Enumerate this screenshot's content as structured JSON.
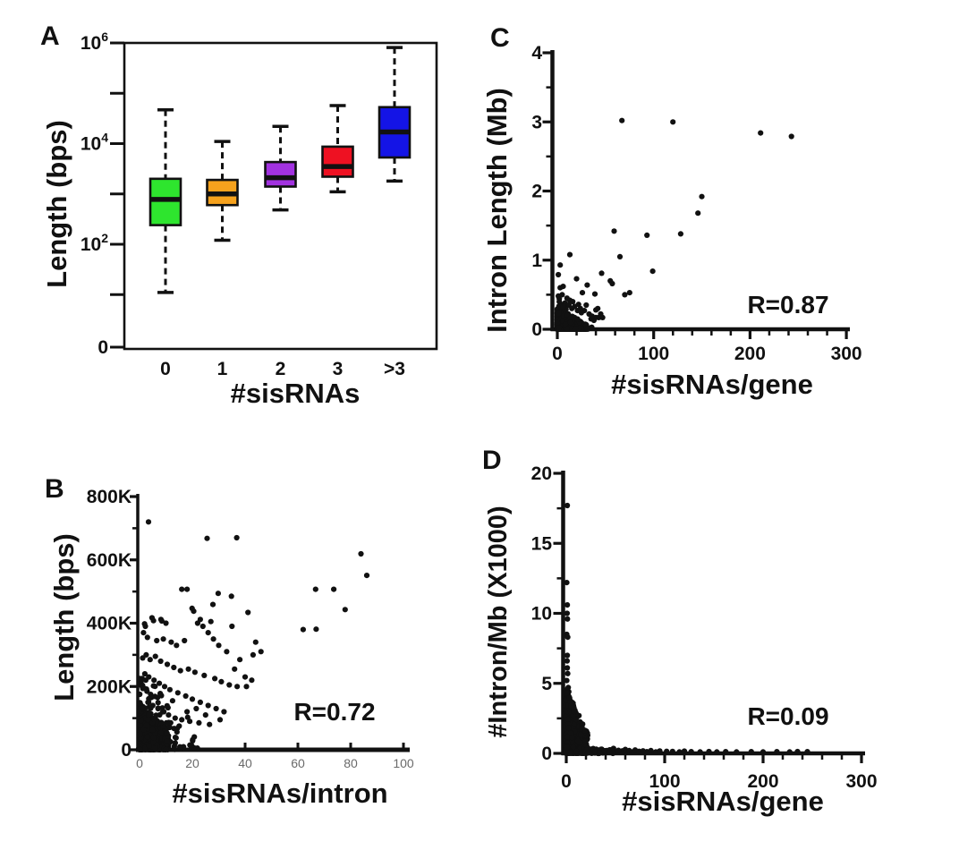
{
  "figure": {
    "background": "#ffffff",
    "description": "Four-panel figure: sisRNA counts versus intron/gene length metrics"
  },
  "chart_data": [
    {
      "panel": "A",
      "type": "box",
      "xlabel": "#sisRNAs",
      "ylabel": "Length (bps)",
      "categories": [
        "0",
        "1",
        "2",
        "3",
        ">3"
      ],
      "y_scale": "log",
      "y_major_ticks": [
        {
          "base": "10",
          "sup": "6",
          "value": 1000000
        },
        {
          "base": "10",
          "sup": "4",
          "value": 10000
        },
        {
          "base": "10",
          "sup": "2",
          "value": 100
        },
        {
          "base": "0",
          "sup": "",
          "value": 0
        }
      ],
      "y_minor_tick_values": [
        100000,
        1000,
        10
      ],
      "boxes": [
        {
          "category": "0",
          "color": "#2ee52e",
          "whisker_low": 11,
          "q1": 240,
          "median": 780,
          "q3": 2000,
          "whisker_high": 47000
        },
        {
          "category": "1",
          "color": "#f6a21d",
          "whisker_low": 120,
          "q1": 600,
          "median": 1000,
          "q3": 1900,
          "whisker_high": 11000
        },
        {
          "category": "2",
          "color": "#a232e0",
          "whisker_low": 480,
          "q1": 1400,
          "median": 2100,
          "q3": 4300,
          "whisker_high": 22000
        },
        {
          "category": "3",
          "color": "#ee1122",
          "whisker_low": 1100,
          "q1": 2200,
          "median": 3500,
          "q3": 8700,
          "whisker_high": 57000
        },
        {
          "category": ">3",
          "color": "#1414e6",
          "whisker_low": 1800,
          "q1": 5300,
          "median": 17000,
          "q3": 53000,
          "whisker_high": 810000
        }
      ]
    },
    {
      "panel": "B",
      "type": "scatter",
      "xlabel": "#sisRNAs/intron",
      "ylabel": "Length (bps)",
      "annotation": "R=0.72",
      "xlim": [
        0,
        100
      ],
      "ylim": [
        0,
        800000
      ],
      "x_ticks": [
        {
          "label": "0",
          "value": 0
        },
        {
          "label": "20",
          "value": 20
        },
        {
          "label": "40",
          "value": 40
        },
        {
          "label": "60",
          "value": 60
        },
        {
          "label": "80",
          "value": 80
        },
        {
          "label": "100",
          "value": 100
        }
      ],
      "y_ticks": [
        {
          "label": "0",
          "value": 0
        },
        {
          "label": "200K",
          "value": 200000
        },
        {
          "label": "400K",
          "value": 400000
        },
        {
          "label": "600K",
          "value": 600000
        },
        {
          "label": "800K",
          "value": 800000
        }
      ],
      "y_minor_tick_values": [
        100000,
        300000,
        500000,
        700000
      ],
      "points": [
        [
          3.4,
          720000
        ],
        [
          25.6,
          668000
        ],
        [
          36.8,
          670000
        ],
        [
          83.9,
          619000
        ],
        [
          86.1,
          551000
        ],
        [
          66.7,
          507000
        ],
        [
          73.6,
          507000
        ],
        [
          16.0,
          507000
        ],
        [
          18.0,
          507000
        ],
        [
          29.8,
          494000
        ],
        [
          34.8,
          485000
        ],
        [
          27.8,
          459000
        ],
        [
          19.9,
          447000
        ],
        [
          41.1,
          434000
        ],
        [
          77.9,
          443000
        ],
        [
          8.4,
          407000
        ],
        [
          1.9,
          398000
        ],
        [
          4.7,
          417000
        ],
        [
          62.0,
          380000
        ],
        [
          66.9,
          381000
        ],
        [
          5.3,
          408000
        ],
        [
          8.1,
          412000
        ],
        [
          20.5,
          438000
        ],
        [
          23.0,
          412000
        ],
        [
          27.0,
          405000
        ],
        [
          10.0,
          400000
        ],
        [
          35.0,
          390000
        ],
        [
          2.2,
          390000
        ],
        [
          1.5,
          370000
        ],
        [
          3.0,
          355000
        ],
        [
          6.5,
          345000
        ],
        [
          9.0,
          350000
        ],
        [
          12.0,
          340000
        ],
        [
          14.0,
          330000
        ],
        [
          17.0,
          345000
        ],
        [
          22.0,
          400000
        ],
        [
          24.0,
          390000
        ],
        [
          26.0,
          370000
        ],
        [
          28.0,
          350000
        ],
        [
          30.0,
          330000
        ],
        [
          33.0,
          310000
        ],
        [
          43.0,
          300000
        ],
        [
          40.0,
          230000
        ],
        [
          37.0,
          200000
        ],
        [
          34.0,
          205000
        ],
        [
          31.0,
          215000
        ],
        [
          28.5,
          225000
        ],
        [
          24.5,
          235000
        ],
        [
          21.0,
          245000
        ],
        [
          18.5,
          255000
        ],
        [
          15.5,
          250000
        ],
        [
          13.0,
          260000
        ],
        [
          10.5,
          270000
        ],
        [
          8.0,
          280000
        ],
        [
          6.0,
          295000
        ],
        [
          4.0,
          285000
        ],
        [
          1.2,
          290000
        ],
        [
          2.5,
          300000
        ],
        [
          36.0,
          255000
        ],
        [
          38.0,
          285000
        ],
        [
          44.0,
          340000
        ],
        [
          46.0,
          310000
        ],
        [
          2.0,
          240000
        ],
        [
          3.5,
          230000
        ],
        [
          5.5,
          220000
        ],
        [
          7.5,
          210000
        ],
        [
          9.5,
          200000
        ],
        [
          11.5,
          190000
        ],
        [
          14.5,
          180000
        ],
        [
          17.5,
          170000
        ],
        [
          20.0,
          160000
        ],
        [
          23.0,
          150000
        ],
        [
          26.0,
          140000
        ],
        [
          29.0,
          130000
        ],
        [
          32.0,
          120000
        ],
        [
          12.5,
          155000
        ],
        [
          6.8,
          165000
        ],
        [
          4.2,
          175000
        ],
        [
          2.8,
          185000
        ],
        [
          1.6,
          195000
        ],
        [
          0.8,
          205000
        ],
        [
          0.5,
          215000
        ],
        [
          1.0,
          225000
        ],
        [
          3.2,
          150000
        ],
        [
          5.0,
          140000
        ],
        [
          7.0,
          130000
        ],
        [
          9.2,
          120000
        ],
        [
          11.0,
          110000
        ],
        [
          13.5,
          100000
        ],
        [
          16.0,
          95000
        ],
        [
          19.0,
          90000
        ],
        [
          22.5,
          85000
        ],
        [
          26.5,
          80000
        ],
        [
          15.0,
          75000
        ],
        [
          10.8,
          70000
        ],
        [
          8.6,
          65000
        ],
        [
          6.4,
          60000
        ],
        [
          4.6,
          55000
        ],
        [
          18.0,
          120000
        ],
        [
          21.5,
          130000
        ],
        [
          25.0,
          110000
        ],
        [
          30.5,
          95000
        ],
        [
          40.5,
          200000
        ],
        [
          42.5,
          220000
        ]
      ],
      "clusters": [
        {
          "seed": 11,
          "count": 650,
          "x_scale": 11,
          "x_pow": 2.2,
          "y_scale": 150000,
          "y_pow": 2.0,
          "taper": 0.6
        },
        {
          "seed": 12,
          "count": 120,
          "x_scale": 22,
          "x_pow": 1.8,
          "y_scale": 260000,
          "y_pow": 1.9,
          "taper": 0.7
        }
      ]
    },
    {
      "panel": "C",
      "type": "scatter",
      "xlabel": "#sisRNAs/gene",
      "ylabel": "Intron Length (Mb)",
      "annotation": "R=0.87",
      "xlim": [
        0,
        300
      ],
      "ylim": [
        0,
        4
      ],
      "x_ticks": [
        {
          "label": "0",
          "value": 0
        },
        {
          "label": "100",
          "value": 100
        },
        {
          "label": "200",
          "value": 200
        },
        {
          "label": "300",
          "value": 300
        }
      ],
      "y_ticks": [
        {
          "label": "0",
          "value": 0
        },
        {
          "label": "1",
          "value": 1
        },
        {
          "label": "2",
          "value": 2
        },
        {
          "label": "3",
          "value": 3
        },
        {
          "label": "4",
          "value": 4
        }
      ],
      "x_minor_step": 20,
      "y_minor_tick_values": [
        0.5,
        1.5,
        2.5,
        3.5
      ],
      "points": [
        [
          67,
          3.02
        ],
        [
          120,
          3.0
        ],
        [
          211,
          2.84
        ],
        [
          243,
          2.79
        ],
        [
          150,
          1.92
        ],
        [
          146,
          1.68
        ],
        [
          59,
          1.42
        ],
        [
          128,
          1.38
        ],
        [
          93,
          1.36
        ],
        [
          13,
          1.08
        ],
        [
          65,
          1.05
        ],
        [
          3,
          0.93
        ],
        [
          99,
          0.84
        ],
        [
          46,
          0.81
        ],
        [
          1,
          0.79
        ],
        [
          20,
          0.73
        ],
        [
          55,
          0.7
        ],
        [
          57,
          0.66
        ],
        [
          31,
          0.64
        ],
        [
          6,
          0.62
        ],
        [
          3,
          0.6
        ],
        [
          26,
          0.53
        ],
        [
          75,
          0.53
        ],
        [
          70,
          0.5
        ],
        [
          39,
          0.51
        ],
        [
          1,
          0.48
        ],
        [
          2,
          0.44
        ],
        [
          13,
          0.42
        ],
        [
          16,
          0.4
        ],
        [
          8,
          0.38
        ],
        [
          22,
          0.36
        ],
        [
          30,
          0.35
        ],
        [
          42,
          0.3
        ],
        [
          40,
          0.28
        ],
        [
          45,
          0.22
        ],
        [
          40,
          0.17
        ],
        [
          43,
          0.17
        ],
        [
          47,
          0.17
        ],
        [
          35,
          0.15
        ],
        [
          38,
          0.13
        ],
        [
          10,
          0.45
        ],
        [
          5,
          0.5
        ],
        [
          18,
          0.33
        ],
        [
          24,
          0.3
        ],
        [
          12,
          0.35
        ],
        [
          7,
          0.33
        ],
        [
          4,
          0.36
        ],
        [
          2,
          0.4
        ],
        [
          28,
          0.27
        ],
        [
          33,
          0.22
        ],
        [
          36,
          0.19
        ],
        [
          25,
          0.24
        ],
        [
          21,
          0.27
        ],
        [
          15,
          0.3
        ],
        [
          9,
          0.29
        ]
      ],
      "clusters": [
        {
          "seed": 21,
          "count": 750,
          "x_scale": 30,
          "x_pow": 2.4,
          "y_scale": 0.3,
          "y_pow": 2.4,
          "taper": 0.7
        },
        {
          "seed": 22,
          "count": 90,
          "x_scale": 36,
          "x_pow": 1.6,
          "y_scale": 0.38,
          "y_pow": 2.2,
          "taper": 0.7
        }
      ]
    },
    {
      "panel": "D",
      "type": "scatter",
      "xlabel": "#sisRNAs/gene",
      "ylabel": "#Intron/Mb (X1000)",
      "annotation": "R=0.09",
      "xlim": [
        0,
        300
      ],
      "ylim": [
        0,
        20
      ],
      "x_ticks": [
        {
          "label": "0",
          "value": 0
        },
        {
          "label": "100",
          "value": 100
        },
        {
          "label": "200",
          "value": 200
        },
        {
          "label": "300",
          "value": 300
        }
      ],
      "y_ticks": [
        {
          "label": "0",
          "value": 0
        },
        {
          "label": "5",
          "value": 5
        },
        {
          "label": "10",
          "value": 10
        },
        {
          "label": "15",
          "value": 15
        },
        {
          "label": "20",
          "value": 20
        }
      ],
      "x_minor_step": 20,
      "y_minor_tick_values": [
        2.5,
        7.5,
        12.5,
        17.5
      ],
      "points": [
        [
          1,
          17.7
        ],
        [
          0.5,
          12.2
        ],
        [
          1,
          10.6
        ],
        [
          0.8,
          10.0
        ],
        [
          1.2,
          9.6
        ],
        [
          0.5,
          8.5
        ],
        [
          1.5,
          8.3
        ],
        [
          1,
          7.0
        ],
        [
          0.8,
          6.6
        ],
        [
          1,
          6.1
        ],
        [
          1.5,
          5.7
        ],
        [
          0.5,
          5.2
        ],
        [
          2,
          4.7
        ],
        [
          2.5,
          4.4
        ],
        [
          1.8,
          4.2
        ],
        [
          3,
          3.9
        ],
        [
          2.2,
          3.6
        ],
        [
          4,
          3.3
        ],
        [
          3.5,
          3.1
        ],
        [
          5,
          2.9
        ],
        [
          31,
          0.15
        ],
        [
          41,
          0.2
        ],
        [
          50,
          0.12
        ],
        [
          57,
          0.18
        ],
        [
          67,
          0.1
        ],
        [
          74,
          0.15
        ],
        [
          82,
          0.12
        ],
        [
          91,
          0.1
        ],
        [
          102,
          0.15
        ],
        [
          115,
          0.1
        ],
        [
          127,
          0.12
        ],
        [
          136,
          0.1
        ],
        [
          145,
          0.13
        ],
        [
          153,
          0.1
        ],
        [
          162,
          0.12
        ],
        [
          173,
          0.1
        ],
        [
          188,
          0.12
        ],
        [
          200,
          0.1
        ],
        [
          214,
          0.12
        ],
        [
          227,
          0.1
        ],
        [
          235,
          0.13
        ],
        [
          245,
          0.12
        ],
        [
          36,
          0.3
        ],
        [
          44,
          0.25
        ],
        [
          48,
          0.35
        ],
        [
          53,
          0.22
        ],
        [
          60,
          0.28
        ],
        [
          64,
          0.2
        ],
        [
          70,
          0.24
        ],
        [
          78,
          0.18
        ],
        [
          86,
          0.2
        ],
        [
          95,
          0.17
        ],
        [
          108,
          0.14
        ],
        [
          120,
          0.16
        ]
      ],
      "clusters": [
        {
          "seed": 31,
          "count": 850,
          "x_scale": 22,
          "x_pow": 2.6,
          "y_scale": 4.6,
          "y_pow": 2.4,
          "taper": 0.7
        },
        {
          "seed": 32,
          "count": 130,
          "x_scale": 48,
          "x_pow": 1.8,
          "y_scale": 0.5,
          "y_pow": 1.6,
          "taper": 0.5
        }
      ]
    }
  ]
}
